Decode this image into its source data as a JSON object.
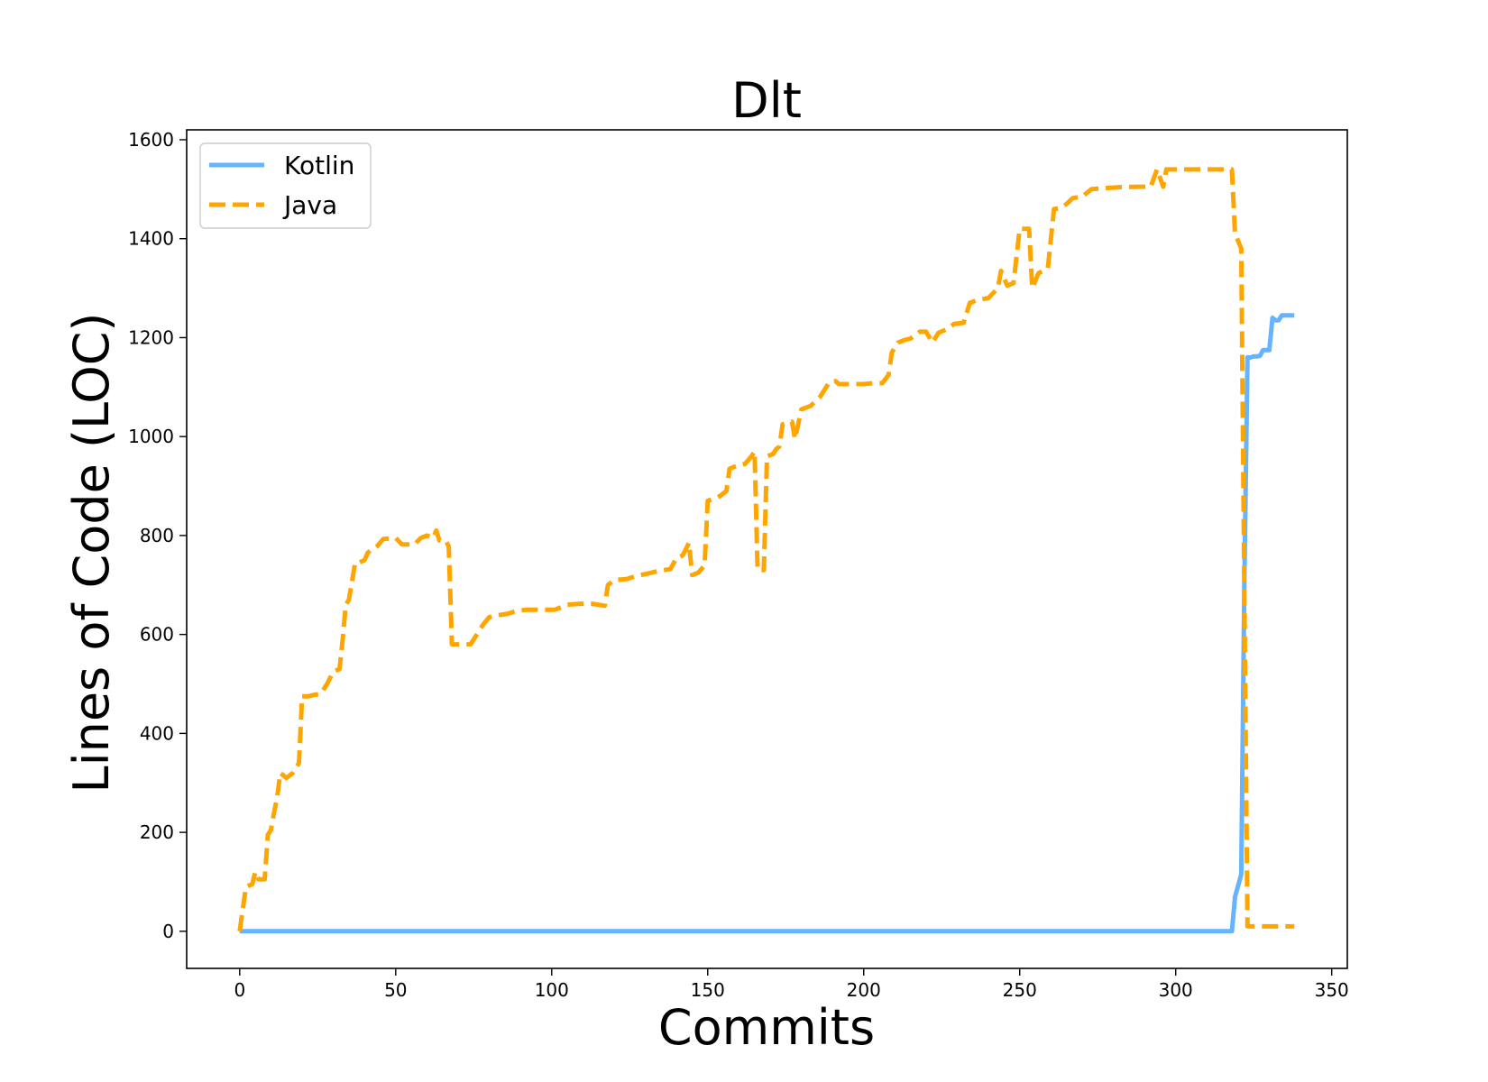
{
  "chart_data": {
    "type": "line",
    "title": "Dlt",
    "xlabel": "Commits",
    "ylabel": "Lines of Code (LOC)",
    "xlim": [
      -17,
      355
    ],
    "ylim": [
      -75,
      1620
    ],
    "xticks": [
      0,
      50,
      100,
      150,
      200,
      250,
      300,
      350
    ],
    "yticks": [
      0,
      200,
      400,
      600,
      800,
      1000,
      1200,
      1400,
      1600
    ],
    "grid": false,
    "legend_position": "top-left",
    "series": [
      {
        "name": "Kotlin",
        "color": "#66b3ff",
        "style": "solid",
        "points": [
          [
            0,
            0
          ],
          [
            100,
            0
          ],
          [
            200,
            0
          ],
          [
            300,
            0
          ],
          [
            318,
            0
          ],
          [
            319,
            70
          ],
          [
            321,
            115
          ],
          [
            322,
            700
          ],
          [
            323,
            1160
          ],
          [
            324,
            1160
          ],
          [
            325,
            1162
          ],
          [
            326,
            1162
          ],
          [
            327,
            1163
          ],
          [
            328,
            1175
          ],
          [
            329,
            1175
          ],
          [
            330,
            1175
          ],
          [
            331,
            1240
          ],
          [
            332,
            1235
          ],
          [
            333,
            1235
          ],
          [
            334,
            1245
          ],
          [
            336,
            1245
          ],
          [
            338,
            1245
          ]
        ]
      },
      {
        "name": "Java",
        "color": "#ffa500",
        "style": "dashed",
        "points": [
          [
            0,
            0
          ],
          [
            2,
            90
          ],
          [
            4,
            95
          ],
          [
            5,
            120
          ],
          [
            6,
            105
          ],
          [
            8,
            105
          ],
          [
            9,
            195
          ],
          [
            10,
            205
          ],
          [
            11,
            240
          ],
          [
            12,
            270
          ],
          [
            13,
            320
          ],
          [
            15,
            310
          ],
          [
            17,
            320
          ],
          [
            19,
            340
          ],
          [
            20,
            475
          ],
          [
            22,
            475
          ],
          [
            24,
            478
          ],
          [
            26,
            480
          ],
          [
            28,
            500
          ],
          [
            30,
            525
          ],
          [
            32,
            530
          ],
          [
            33,
            590
          ],
          [
            34,
            660
          ],
          [
            35,
            670
          ],
          [
            37,
            745
          ],
          [
            38,
            745
          ],
          [
            40,
            750
          ],
          [
            41,
            765
          ],
          [
            42,
            770
          ],
          [
            44,
            778
          ],
          [
            46,
            793
          ],
          [
            50,
            795
          ],
          [
            52,
            782
          ],
          [
            56,
            782
          ],
          [
            58,
            795
          ],
          [
            60,
            800
          ],
          [
            62,
            795
          ],
          [
            63,
            810
          ],
          [
            64,
            790
          ],
          [
            66,
            790
          ],
          [
            67,
            778
          ],
          [
            68,
            580
          ],
          [
            70,
            580
          ],
          [
            72,
            580
          ],
          [
            74,
            580
          ],
          [
            76,
            600
          ],
          [
            78,
            620
          ],
          [
            80,
            635
          ],
          [
            82,
            638
          ],
          [
            86,
            642
          ],
          [
            89,
            648
          ],
          [
            92,
            650
          ],
          [
            95,
            650
          ],
          [
            99,
            650
          ],
          [
            101,
            650
          ],
          [
            103,
            655
          ],
          [
            105,
            660
          ],
          [
            109,
            662
          ],
          [
            113,
            662
          ],
          [
            117,
            658
          ],
          [
            118,
            700
          ],
          [
            120,
            710
          ],
          [
            124,
            712
          ],
          [
            127,
            718
          ],
          [
            130,
            722
          ],
          [
            134,
            728
          ],
          [
            138,
            732
          ],
          [
            140,
            755
          ],
          [
            142,
            760
          ],
          [
            144,
            785
          ],
          [
            145,
            720
          ],
          [
            147,
            725
          ],
          [
            149,
            740
          ],
          [
            150,
            870
          ],
          [
            152,
            875
          ],
          [
            154,
            880
          ],
          [
            156,
            890
          ],
          [
            157,
            935
          ],
          [
            159,
            940
          ],
          [
            162,
            945
          ],
          [
            164,
            960
          ],
          [
            165,
            970
          ],
          [
            166,
            730
          ],
          [
            168,
            730
          ],
          [
            169,
            960
          ],
          [
            171,
            965
          ],
          [
            172,
            975
          ],
          [
            173,
            980
          ],
          [
            174,
            1025
          ],
          [
            177,
            1030
          ],
          [
            178,
            995
          ],
          [
            180,
            1055
          ],
          [
            183,
            1062
          ],
          [
            186,
            1080
          ],
          [
            188,
            1100
          ],
          [
            189,
            1110
          ],
          [
            191,
            1112
          ],
          [
            192,
            1106
          ],
          [
            196,
            1106
          ],
          [
            200,
            1106
          ],
          [
            203,
            1108
          ],
          [
            206,
            1108
          ],
          [
            208,
            1125
          ],
          [
            209,
            1170
          ],
          [
            211,
            1190
          ],
          [
            213,
            1195
          ],
          [
            215,
            1198
          ],
          [
            218,
            1212
          ],
          [
            220,
            1212
          ],
          [
            222,
            1190
          ],
          [
            224,
            1210
          ],
          [
            227,
            1218
          ],
          [
            229,
            1228
          ],
          [
            232,
            1230
          ],
          [
            234,
            1270
          ],
          [
            236,
            1275
          ],
          [
            240,
            1280
          ],
          [
            243,
            1300
          ],
          [
            244,
            1335
          ],
          [
            246,
            1305
          ],
          [
            248,
            1310
          ],
          [
            250,
            1420
          ],
          [
            253,
            1420
          ],
          [
            254,
            1300
          ],
          [
            256,
            1330
          ],
          [
            259,
            1340
          ],
          [
            261,
            1460
          ],
          [
            263,
            1462
          ],
          [
            265,
            1470
          ],
          [
            267,
            1482
          ],
          [
            270,
            1485
          ],
          [
            273,
            1500
          ],
          [
            277,
            1502
          ],
          [
            282,
            1504
          ],
          [
            288,
            1505
          ],
          [
            292,
            1505
          ],
          [
            294,
            1540
          ],
          [
            296,
            1505
          ],
          [
            297,
            1540
          ],
          [
            300,
            1540
          ],
          [
            305,
            1540
          ],
          [
            310,
            1540
          ],
          [
            315,
            1540
          ],
          [
            318,
            1540
          ],
          [
            319,
            1410
          ],
          [
            321,
            1380
          ],
          [
            322,
            690
          ],
          [
            323,
            10
          ],
          [
            325,
            10
          ],
          [
            330,
            10
          ],
          [
            338,
            10
          ]
        ]
      }
    ]
  }
}
